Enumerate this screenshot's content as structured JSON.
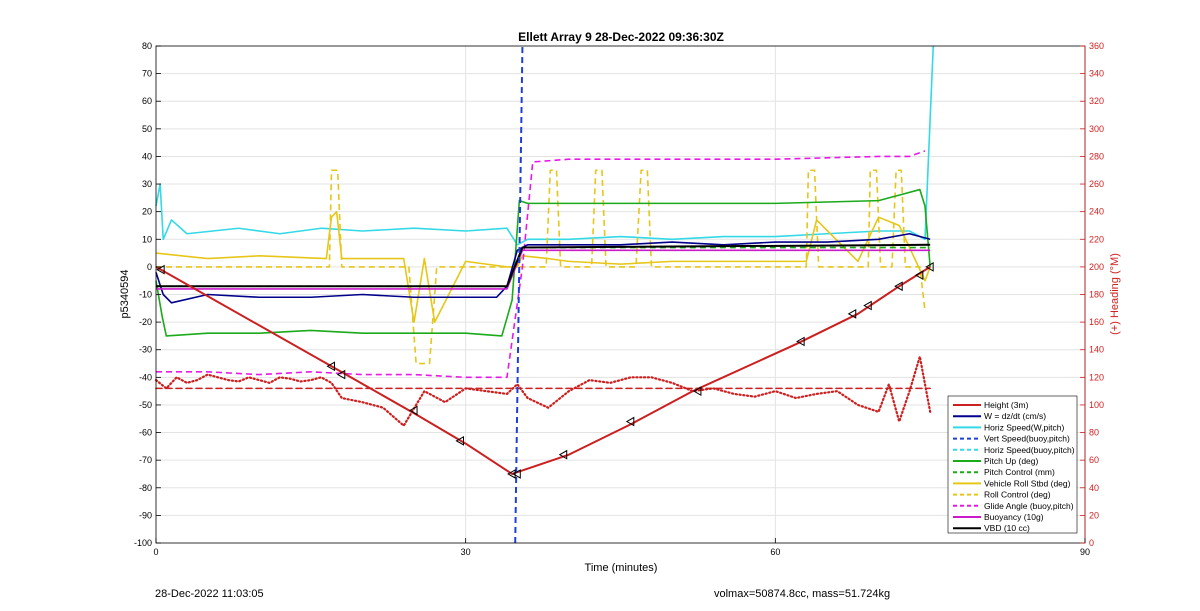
{
  "chart_data": {
    "type": "line",
    "title": "Ellett Array 9 28-Dec-2022 09:36:30Z",
    "xlabel": "Time (minutes)",
    "ylabel": "p5340594",
    "y2label": "(+) Heading (°M)",
    "xlim": [
      0,
      90
    ],
    "ylim": [
      -100,
      80
    ],
    "y2lim": [
      0,
      360
    ],
    "xticks": [
      "0",
      "30",
      "60",
      "90"
    ],
    "yticks": [
      "80",
      "70",
      "60",
      "50",
      "40",
      "30",
      "20",
      "10",
      "0",
      "-10",
      "-20",
      "-30",
      "-40",
      "-50",
      "-60",
      "-70",
      "-80",
      "-90",
      "-100"
    ],
    "y2ticks": [
      "360",
      "340",
      "320",
      "300",
      "280",
      "260",
      "240",
      "220",
      "200",
      "180",
      "160",
      "140",
      "120",
      "100",
      "80",
      "60",
      "40",
      "20",
      "0"
    ],
    "grid": true,
    "legend_position": "bottom-right",
    "series": [
      {
        "name": "Height (3m)",
        "color": "#cc1f1f",
        "style": "solid",
        "x": [
          0,
          17,
          25,
          30,
          34.5,
          40,
          46,
          52,
          62,
          68,
          72,
          75
        ],
        "y": [
          0,
          -36,
          -53,
          -64,
          -75,
          -68,
          -57,
          -45,
          -28,
          -17,
          -7,
          0
        ]
      },
      {
        "name": "W = dz/dt (cm/s)",
        "color": "#00008b",
        "style": "solid",
        "x": [
          0,
          0.7,
          1.5,
          5,
          10,
          15,
          20,
          25,
          30,
          33,
          34,
          35,
          36,
          40,
          45,
          50,
          55,
          60,
          65,
          70,
          73,
          75
        ],
        "y": [
          -2,
          -10,
          -13,
          -10,
          -11,
          -11,
          -10,
          -11,
          -11,
          -11,
          -7,
          6,
          8,
          8,
          8,
          9,
          8,
          9,
          9,
          10,
          12,
          10
        ]
      },
      {
        "name": "Horiz Speed(W,pitch)",
        "color": "#33d9e6",
        "style": "solid",
        "x": [
          0,
          0.4,
          0.7,
          1.5,
          3,
          8,
          12,
          16,
          20,
          25,
          30,
          34,
          35,
          36,
          40,
          45,
          50,
          55,
          60,
          65,
          70,
          73,
          74.5,
          75.3
        ],
        "y": [
          22,
          30,
          10,
          17,
          12,
          14,
          12,
          14,
          13,
          14,
          13,
          14,
          8,
          10,
          10,
          11,
          10,
          11,
          11,
          12,
          13,
          13,
          10,
          80
        ]
      },
      {
        "name": "Vert Speed(buoy,pitch)",
        "color": "#1f3fd9",
        "style": "dashed",
        "x": [
          34.8,
          35.5
        ],
        "y": [
          -100,
          80
        ]
      },
      {
        "name": "Horiz Speed(buoy,pitch)",
        "color": "#33d9e6",
        "style": "dashed",
        "x": [],
        "y": []
      },
      {
        "name": "Pitch Up (deg)",
        "color": "#1aaa1a",
        "style": "solid",
        "x": [
          0,
          0.6,
          1,
          5,
          10,
          15,
          20,
          25,
          30,
          33.5,
          34.5,
          35.2,
          36,
          40,
          50,
          60,
          70,
          72,
          74,
          74.5,
          75
        ],
        "y": [
          -5,
          -18,
          -25,
          -24,
          -24,
          -23,
          -24,
          -24,
          -24,
          -25,
          -12,
          24,
          23,
          23,
          23,
          23,
          24,
          26,
          28,
          22,
          0
        ]
      },
      {
        "name": "Pitch Control (mm)",
        "color": "#1aaa1a",
        "style": "dashed",
        "x": [
          0,
          34,
          35.5,
          75
        ],
        "y": [
          -7,
          -7,
          7,
          7
        ]
      },
      {
        "name": "Vehicle Roll Stbd (deg)",
        "color": "#e6c619",
        "style": "solid",
        "x": [
          0,
          5,
          10,
          16.5,
          17,
          17.5,
          18,
          24,
          25,
          26,
          27,
          30,
          34,
          35,
          35.5,
          38,
          40,
          45,
          50,
          60,
          63,
          64,
          68,
          70,
          72,
          73.5,
          74.5,
          75
        ],
        "y": [
          5,
          3,
          4,
          3,
          18,
          20,
          3,
          3,
          -20,
          3,
          -20,
          2,
          0,
          0,
          4,
          3,
          2,
          1,
          2,
          2,
          2,
          17,
          2,
          18,
          15,
          3,
          -5,
          0
        ]
      },
      {
        "name": "Roll Control (deg)",
        "color": "#e6c619",
        "style": "dashed",
        "x": [
          0,
          16.8,
          17,
          17.6,
          18,
          24.5,
          25.2,
          26.5,
          27.2,
          35,
          35.2,
          37.8,
          38.2,
          38.8,
          39.2,
          42.2,
          42.6,
          43.2,
          43.6,
          46.5,
          47,
          47.6,
          48,
          63,
          63.2,
          63.8,
          64.2,
          69,
          69.2,
          69.8,
          70.2,
          71.3,
          71.7,
          72.2,
          72.6,
          74,
          74.5
        ],
        "y": [
          0,
          0,
          35,
          35,
          0,
          0,
          -35,
          -35,
          0,
          0,
          0,
          0,
          35,
          35,
          0,
          0,
          35,
          35,
          0,
          0,
          35,
          35,
          0,
          0,
          35,
          35,
          0,
          0,
          35,
          35,
          0,
          0,
          35,
          35,
          0,
          0,
          -16
        ]
      },
      {
        "name": "Glide Angle (buoy,pitch)",
        "color": "#e619e6",
        "style": "dashed",
        "x": [
          0,
          5,
          10,
          15,
          20,
          25,
          30,
          34,
          35.5,
          36.5,
          40,
          50,
          60,
          70,
          73,
          74.5
        ],
        "y": [
          -38,
          -38,
          -39,
          -38,
          -39,
          -39,
          -40,
          -40,
          0,
          38,
          39,
          39,
          39,
          40,
          40,
          42
        ]
      },
      {
        "name": "Buoyancy (10g)",
        "color": "#cc19cc",
        "style": "solid",
        "x": [
          0,
          34,
          35.5,
          75
        ],
        "y": [
          -8,
          -8,
          6,
          6
        ]
      },
      {
        "name": "VBD (10 cc)",
        "color": "#000000",
        "style": "solid",
        "x": [
          0,
          34,
          35.5,
          75
        ],
        "y": [
          -7,
          -7,
          7,
          8
        ]
      }
    ],
    "heading_axis_series": [
      {
        "name": "",
        "color": "#cc1f1f",
        "style": "dotted",
        "x": [
          0,
          1,
          2,
          3,
          4,
          5,
          6,
          7,
          8,
          9,
          10,
          11,
          12,
          13,
          14,
          15,
          16,
          17,
          18,
          20,
          22,
          24,
          26,
          28,
          30,
          32,
          34,
          35,
          36,
          38,
          40,
          42,
          44,
          46,
          48,
          50,
          52,
          54,
          56,
          58,
          60,
          62,
          64,
          66,
          68,
          70,
          71,
          72,
          73,
          74,
          75
        ],
        "y": [
          118,
          112,
          120,
          116,
          118,
          122,
          120,
          118,
          117,
          120,
          118,
          116,
          120,
          119,
          117,
          118,
          120,
          116,
          105,
          102,
          98,
          85,
          110,
          102,
          112,
          110,
          108,
          115,
          105,
          98,
          110,
          118,
          116,
          120,
          120,
          116,
          110,
          112,
          108,
          106,
          110,
          105,
          108,
          110,
          100,
          95,
          115,
          88,
          110,
          135,
          95
        ]
      },
      {
        "name": "",
        "color": "#cc1f1f",
        "style": "dashed",
        "x": [
          0,
          75
        ],
        "y": [
          112,
          112
        ]
      }
    ],
    "markers": {
      "x": [
        0.5,
        17,
        18,
        25,
        29.5,
        34.5,
        35,
        39.5,
        46,
        52.5,
        62.5,
        67.5,
        69,
        72,
        74,
        75
      ],
      "y": [
        -1,
        -36,
        -39,
        -52,
        -63,
        -75,
        -75,
        -68,
        -56,
        -45,
        -27,
        -17,
        -14,
        -7,
        -3,
        0
      ]
    }
  },
  "footer": {
    "left_text": "28-Dec-2022 11:03:05",
    "right_text": "volmax=50874.8cc, mass=51.724kg"
  }
}
